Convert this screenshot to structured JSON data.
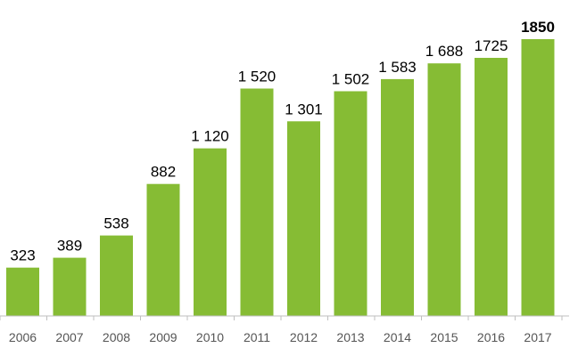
{
  "chart_data": {
    "type": "bar",
    "title": "",
    "xlabel": "",
    "ylabel": "",
    "categories": [
      "2006",
      "2007",
      "2008",
      "2009",
      "2010",
      "2011",
      "2012",
      "2013",
      "2014",
      "2015",
      "2016",
      "2017"
    ],
    "values": [
      323,
      389,
      538,
      882,
      1120,
      1520,
      1301,
      1502,
      1583,
      1688,
      1725,
      1850
    ],
    "data_labels": [
      "323",
      "389",
      "538",
      "882",
      "1 120",
      "1 520",
      "1 301",
      "1 502",
      "1 583",
      "1 688",
      "1725",
      "1850"
    ],
    "emphasized_category": "2017",
    "ylim": [
      0,
      1850
    ],
    "y_axis_visible": false,
    "grid": false,
    "legend": "none",
    "colors": {
      "bar": "#86bc34",
      "axis": "#bfbfbf",
      "tick_label": "#555555",
      "data_label": "#000000"
    }
  }
}
